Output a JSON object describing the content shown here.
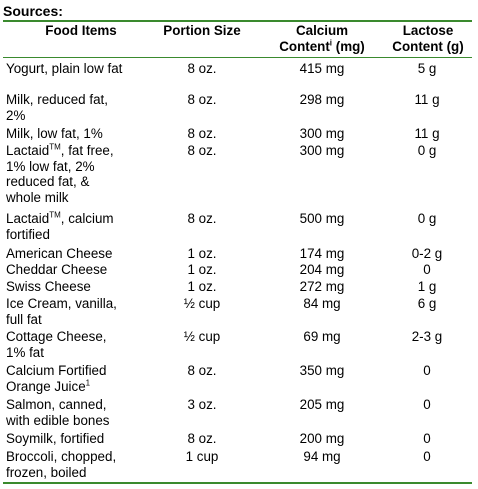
{
  "title": "Sources:",
  "headers": {
    "food": "Food Items",
    "portion": "Portion Size",
    "calcium_l1": "Calcium",
    "calcium_l2a": "Content",
    "calcium_sup": "i",
    "calcium_l2b": " (mg)",
    "lactose_l1": "Lactose",
    "lactose_l2": "Content (g)"
  },
  "rows": [
    {
      "food": [
        "Yogurt, plain low fat"
      ],
      "portion": "8 oz.",
      "calcium": "415 mg",
      "lactose": "5 g"
    },
    {
      "food": [
        "Milk, reduced fat,",
        "2%"
      ],
      "portion": "8 oz.",
      "calcium": "298 mg",
      "lactose": "11 g"
    },
    {
      "food": [
        "Milk, low fat, 1%"
      ],
      "portion": "8 oz.",
      "calcium": "300 mg",
      "lactose": "11 g"
    },
    {
      "food": [
        "Lactaid|TM|, fat free,",
        "1% low fat, 2%",
        "reduced fat, &",
        "whole milk"
      ],
      "portion": "8 oz.",
      "calcium": "300 mg",
      "lactose": "0 g"
    },
    {
      "food": [
        "Lactaid|TM|, calcium",
        "fortified"
      ],
      "portion": "8 oz.",
      "calcium": "500 mg",
      "lactose": "0 g"
    },
    {
      "food": [
        "American Cheese"
      ],
      "portion": "1 oz.",
      "calcium": "174 mg",
      "lactose": "0-2 g"
    },
    {
      "food": [
        "Cheddar Cheese"
      ],
      "portion": "1 oz.",
      "calcium": "204 mg",
      "lactose": "0"
    },
    {
      "food": [
        "Swiss Cheese"
      ],
      "portion": "1 oz.",
      "calcium": "272 mg",
      "lactose": "1 g"
    },
    {
      "food": [
        "Ice Cream, vanilla,",
        "full fat"
      ],
      "portion": "½ cup",
      "calcium": "84 mg",
      "lactose": "6 g"
    },
    {
      "food": [
        "Cottage Cheese,",
        "1% fat"
      ],
      "portion": "½ cup",
      "calcium": "69 mg",
      "lactose": "2-3 g"
    },
    {
      "food": [
        "Calcium Fortified",
        "Orange Juice|1|"
      ],
      "portion": "8 oz.",
      "calcium": "350 mg",
      "lactose": "0"
    },
    {
      "food": [
        "Salmon, canned,",
        "with edible bones"
      ],
      "portion": "3 oz.",
      "calcium": "205 mg",
      "lactose": "0"
    },
    {
      "food": [
        "Soymilk, fortified"
      ],
      "portion": "8 oz.",
      "calcium": "200 mg",
      "lactose": "0"
    },
    {
      "food": [
        "Broccoli, chopped,",
        "frozen, boiled"
      ],
      "portion": "1 cup",
      "calcium": "94 mg",
      "lactose": "0"
    }
  ]
}
